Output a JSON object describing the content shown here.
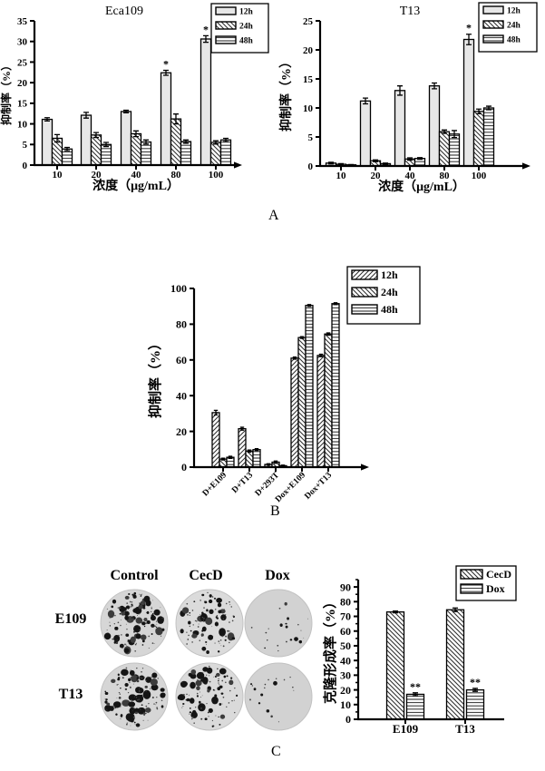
{
  "figure": {
    "panel_labels": {
      "a": "A",
      "b": "B",
      "c": "C"
    }
  },
  "chart_data": [
    {
      "id": "eca109",
      "panel": "A-left",
      "type": "bar",
      "title": "Eca109",
      "xlabel": "浓度（μg/mL）",
      "ylabel": "抑制率（%）",
      "ylim": [
        0,
        35
      ],
      "ytick_step": 5,
      "grid": false,
      "legend_position": "top-right",
      "legend": [
        "12h",
        "24h",
        "48h"
      ],
      "categories": [
        "10",
        "20",
        "40",
        "80",
        "100"
      ],
      "series": [
        {
          "name": "12h",
          "pattern": "solid",
          "values": [
            11.1,
            12.1,
            13.0,
            22.4,
            30.6
          ],
          "errors": [
            0.4,
            0.7,
            0.3,
            0.6,
            0.8
          ],
          "stars": [
            "",
            "",
            "",
            "*",
            "*"
          ]
        },
        {
          "name": "24h",
          "pattern": "diag-back",
          "values": [
            6.5,
            7.3,
            7.6,
            11.2,
            5.5
          ],
          "errors": [
            0.9,
            0.6,
            0.7,
            1.2,
            0.4
          ],
          "stars": [
            "",
            "",
            "",
            "",
            ""
          ]
        },
        {
          "name": "48h",
          "pattern": "horiz",
          "values": [
            3.9,
            5.0,
            5.6,
            5.7,
            6.1
          ],
          "errors": [
            0.4,
            0.5,
            0.5,
            0.4,
            0.4
          ],
          "stars": [
            "",
            "",
            "",
            "",
            ""
          ]
        }
      ]
    },
    {
      "id": "t13",
      "panel": "A-right",
      "type": "bar",
      "title": "T13",
      "xlabel": "浓度（μg/mL）",
      "ylabel": "抑制率（%）",
      "ylim": [
        0,
        25
      ],
      "ytick_step": 5,
      "grid": false,
      "legend_position": "top-right",
      "legend": [
        "12h",
        "24h",
        "48h"
      ],
      "categories": [
        "10",
        "20",
        "40",
        "80",
        "100"
      ],
      "series": [
        {
          "name": "12h",
          "pattern": "solid",
          "values": [
            0.5,
            11.2,
            13.0,
            13.8,
            21.8
          ],
          "errors": [
            0.15,
            0.5,
            0.8,
            0.5,
            0.9
          ],
          "stars": [
            "",
            "",
            "",
            "",
            "*"
          ]
        },
        {
          "name": "24h",
          "pattern": "diag-back",
          "values": [
            0.3,
            0.9,
            1.2,
            5.9,
            9.4
          ],
          "errors": [
            0.1,
            0.15,
            0.2,
            0.3,
            0.4
          ],
          "stars": [
            "",
            "",
            "",
            "",
            ""
          ]
        },
        {
          "name": "48h",
          "pattern": "horiz",
          "values": [
            0.2,
            0.4,
            1.3,
            5.5,
            10.0
          ],
          "errors": [
            0.05,
            0.1,
            0.15,
            0.6,
            0.3
          ],
          "stars": [
            "",
            "",
            "",
            "",
            ""
          ]
        }
      ]
    },
    {
      "id": "combo",
      "panel": "B",
      "type": "bar",
      "title": "",
      "xlabel": "",
      "ylabel": "抑制率（%）",
      "ylim": [
        0,
        100
      ],
      "ytick_step": 20,
      "grid": false,
      "legend_position": "top-right",
      "legend": [
        "12h",
        "24h",
        "48h"
      ],
      "categories": [
        "D+E109",
        "D+T13",
        "D+293T",
        "Dox+E109",
        "Dox+T13"
      ],
      "series": [
        {
          "name": "12h",
          "pattern": "diag-fwd",
          "values": [
            30.5,
            21.5,
            1.5,
            61.0,
            62.5
          ],
          "errors": [
            1.3,
            0.8,
            0.4,
            0.6,
            0.7
          ],
          "stars": [
            "",
            "",
            "",
            "",
            ""
          ]
        },
        {
          "name": "24h",
          "pattern": "diag-back",
          "values": [
            4.5,
            9.0,
            2.8,
            72.5,
            74.5
          ],
          "errors": [
            0.5,
            0.6,
            0.6,
            0.5,
            0.6
          ],
          "stars": [
            "",
            "",
            "",
            "",
            ""
          ]
        },
        {
          "name": "48h",
          "pattern": "horiz",
          "values": [
            5.5,
            9.8,
            0.8,
            90.5,
            91.5
          ],
          "errors": [
            0.6,
            0.5,
            0.3,
            0.5,
            0.5
          ],
          "stars": [
            "",
            "",
            "",
            "",
            ""
          ]
        }
      ]
    },
    {
      "id": "clonogenic",
      "panel": "C-right",
      "type": "bar",
      "title": "",
      "xlabel": "",
      "ylabel": "克隆形成率（%）",
      "ylim": [
        0,
        95
      ],
      "ytick_max": 90,
      "ytick_step": 10,
      "minor_ticks": true,
      "grid": false,
      "legend_position": "top-right",
      "legend": [
        "CecD",
        "Dox"
      ],
      "categories": [
        "E109",
        "T13"
      ],
      "series": [
        {
          "name": "CecD",
          "pattern": "diag-back",
          "values": [
            73.0,
            74.5
          ],
          "errors": [
            0.6,
            1.2
          ],
          "stars": [
            "",
            ""
          ]
        },
        {
          "name": "Dox",
          "pattern": "horiz",
          "values": [
            17.0,
            20.0
          ],
          "errors": [
            1.0,
            1.0
          ],
          "stars": [
            "**",
            "**"
          ]
        }
      ]
    }
  ],
  "colony_assay": {
    "column_headers": [
      "Control",
      "CecD",
      "Dox"
    ],
    "row_labels": [
      "E109",
      "T13"
    ],
    "dishes": [
      {
        "row": "E109",
        "column": "Control",
        "colony_density": "high",
        "spots": 82,
        "max_spot": 3.8
      },
      {
        "row": "E109",
        "column": "CecD",
        "colony_density": "medium",
        "spots": 54,
        "max_spot": 3.4
      },
      {
        "row": "E109",
        "column": "Dox",
        "colony_density": "low",
        "spots": 12,
        "max_spot": 1.8
      },
      {
        "row": "T13",
        "column": "Control",
        "colony_density": "high",
        "spots": 76,
        "max_spot": 4.0
      },
      {
        "row": "T13",
        "column": "CecD",
        "colony_density": "medium",
        "spots": 60,
        "max_spot": 3.6
      },
      {
        "row": "T13",
        "column": "Dox",
        "colony_density": "low",
        "spots": 10,
        "max_spot": 2.0
      }
    ]
  }
}
